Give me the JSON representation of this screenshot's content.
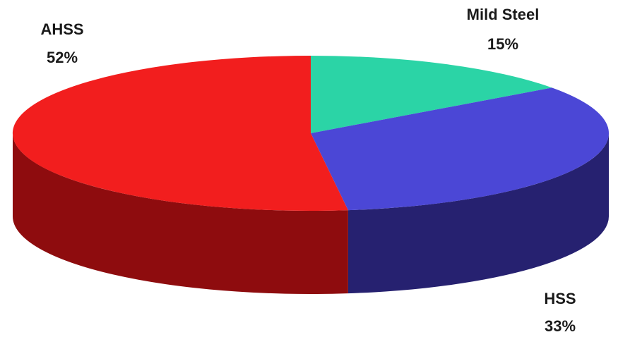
{
  "chart_data": {
    "type": "pie",
    "style": "3d",
    "slices": [
      {
        "name": "Mild Steel",
        "value": 15,
        "label": "15%",
        "color": "#2BD4A6",
        "side_color": "#1E9C7A"
      },
      {
        "name": "HSS",
        "value": 33,
        "label": "33%",
        "color": "#4B47D6",
        "side_color": "#262170"
      },
      {
        "name": "AHSS",
        "value": 52,
        "label": "52%",
        "color": "#F21E1E",
        "side_color": "#8E0C0E"
      }
    ]
  }
}
